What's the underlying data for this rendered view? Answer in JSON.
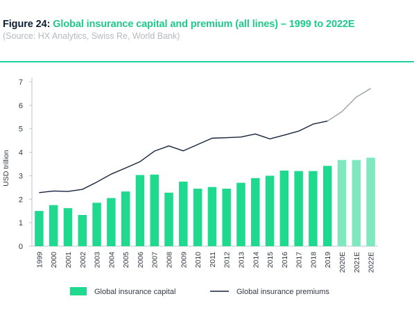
{
  "header": {
    "figure_label": "Figure 24:",
    "title": "Global insurance capital and premium (all lines) – 1999 to 2022E",
    "subtitle": "(Source: HX Analytics, Swiss Re, World Bank)"
  },
  "colors": {
    "accent": "#1fc98a",
    "bar_actual": "#1fd98f",
    "bar_estimate": "#7ee8bf",
    "line_actual": "#14223a",
    "line_estimate": "#9aa3ab",
    "axis": "#bfc4c9"
  },
  "chart_data": {
    "type": "bar",
    "categories": [
      "1999",
      "2000",
      "2001",
      "2002",
      "2003",
      "2004",
      "2005",
      "2006",
      "2007",
      "2008",
      "2009",
      "2010",
      "2011",
      "2012",
      "2013",
      "2014",
      "2015",
      "2016",
      "2017",
      "2018",
      "2019",
      "2020E",
      "2021E",
      "2022E"
    ],
    "estimate_categories": [
      "2020E",
      "2021E",
      "2022E"
    ],
    "ylabel": "USD trillion",
    "ylim": [
      0,
      7
    ],
    "yticks": [
      0,
      1,
      2,
      3,
      4,
      5,
      6,
      7
    ],
    "grid": false,
    "legend_position": "bottom",
    "series": [
      {
        "name": "Global insurance capital",
        "kind": "bar",
        "values": [
          1.5,
          1.75,
          1.62,
          1.33,
          1.85,
          2.05,
          2.33,
          3.03,
          3.05,
          2.28,
          2.75,
          2.45,
          2.52,
          2.45,
          2.7,
          2.9,
          3.0,
          3.22,
          3.2,
          3.2,
          3.42,
          3.67,
          3.67,
          3.77
        ]
      },
      {
        "name": "Global insurance premiums",
        "kind": "line",
        "values": [
          2.28,
          2.35,
          2.33,
          2.42,
          2.73,
          3.07,
          3.33,
          3.6,
          4.05,
          4.27,
          4.06,
          4.33,
          4.6,
          4.62,
          4.65,
          4.78,
          4.57,
          4.73,
          4.9,
          5.2,
          5.33,
          5.73,
          6.35,
          6.72
        ]
      }
    ]
  }
}
